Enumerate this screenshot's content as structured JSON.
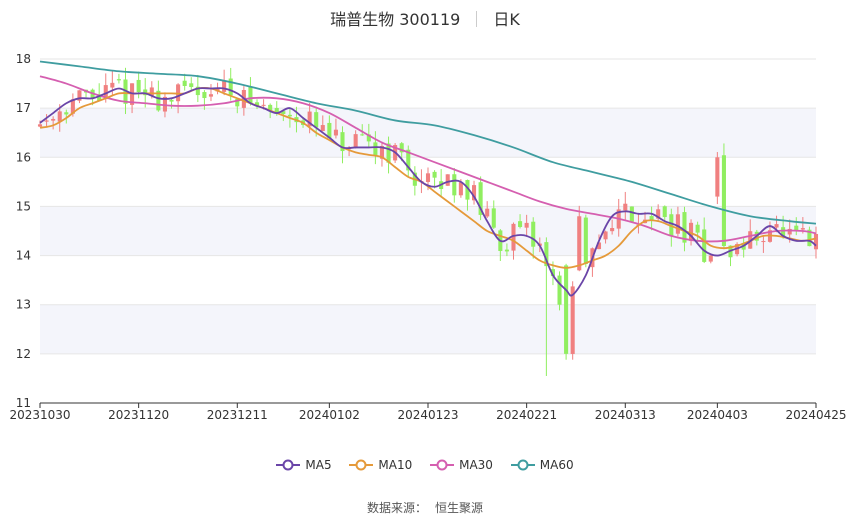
{
  "title": "瑞普生物 300119",
  "period": "日K",
  "source": {
    "label": "数据来源：",
    "name": "恒生聚源"
  },
  "colors": {
    "up": "#f08080",
    "down": "#90ee60",
    "ma5": "#6a45a8",
    "ma10": "#e59a3a",
    "ma30": "#d55fb0",
    "ma60": "#3f9da0",
    "band": "#f4f5fb",
    "grid": "#e6e6e6"
  },
  "chart_data": {
    "type": "candlestick",
    "title": "瑞普生物 300119",
    "ylim": [
      11,
      18
    ],
    "yticks": [
      11,
      12,
      13,
      14,
      15,
      16,
      17,
      18
    ],
    "xticks": [
      "20231030",
      "20231120",
      "20231211",
      "20240102",
      "20240123",
      "20240221",
      "20240313",
      "20240403",
      "20240425"
    ],
    "n_bars": 119,
    "legend_position": "bottom-center",
    "grid": true,
    "series": [
      {
        "name": "MA5",
        "color": "#6a45a8",
        "points": [
          [
            0,
            16.7
          ],
          [
            2,
            16.9
          ],
          [
            4,
            17.1
          ],
          [
            6,
            17.2
          ],
          [
            8,
            17.2
          ],
          [
            10,
            17.3
          ],
          [
            12,
            17.4
          ],
          [
            14,
            17.3
          ],
          [
            16,
            17.3
          ],
          [
            18,
            17.2
          ],
          [
            20,
            17.2
          ],
          [
            22,
            17.3
          ],
          [
            24,
            17.4
          ],
          [
            26,
            17.4
          ],
          [
            28,
            17.4
          ],
          [
            30,
            17.3
          ],
          [
            32,
            17.1
          ],
          [
            34,
            17.0
          ],
          [
            36,
            16.9
          ],
          [
            38,
            17.0
          ],
          [
            40,
            16.8
          ],
          [
            42,
            16.6
          ],
          [
            44,
            16.4
          ],
          [
            46,
            16.2
          ],
          [
            48,
            16.2
          ],
          [
            50,
            16.2
          ],
          [
            52,
            16.2
          ],
          [
            54,
            16.1
          ],
          [
            56,
            15.8
          ],
          [
            58,
            15.5
          ],
          [
            60,
            15.4
          ],
          [
            62,
            15.5
          ],
          [
            64,
            15.5
          ],
          [
            66,
            15.2
          ],
          [
            68,
            14.7
          ],
          [
            70,
            14.3
          ],
          [
            72,
            14.4
          ],
          [
            74,
            14.4
          ],
          [
            76,
            14.2
          ],
          [
            78,
            13.6
          ],
          [
            80,
            13.3
          ],
          [
            81,
            13.2
          ],
          [
            83,
            13.6
          ],
          [
            85,
            14.3
          ],
          [
            87,
            14.8
          ],
          [
            89,
            14.9
          ],
          [
            91,
            14.85
          ],
          [
            93,
            14.85
          ],
          [
            95,
            14.7
          ],
          [
            97,
            14.6
          ],
          [
            99,
            14.4
          ],
          [
            101,
            14.1
          ],
          [
            103,
            14.0
          ],
          [
            105,
            14.1
          ],
          [
            107,
            14.2
          ],
          [
            109,
            14.4
          ],
          [
            111,
            14.6
          ],
          [
            113,
            14.4
          ],
          [
            115,
            14.3
          ],
          [
            117,
            14.3
          ],
          [
            118,
            14.2
          ]
        ]
      },
      {
        "name": "MA10",
        "color": "#e59a3a",
        "points": [
          [
            0,
            16.6
          ],
          [
            2,
            16.65
          ],
          [
            4,
            16.8
          ],
          [
            6,
            17.0
          ],
          [
            8,
            17.1
          ],
          [
            10,
            17.2
          ],
          [
            12,
            17.3
          ],
          [
            14,
            17.3
          ],
          [
            16,
            17.3
          ],
          [
            18,
            17.3
          ],
          [
            20,
            17.3
          ],
          [
            22,
            17.3
          ],
          [
            24,
            17.4
          ],
          [
            26,
            17.4
          ],
          [
            28,
            17.3
          ],
          [
            30,
            17.2
          ],
          [
            32,
            17.1
          ],
          [
            34,
            17.0
          ],
          [
            36,
            16.9
          ],
          [
            38,
            16.8
          ],
          [
            40,
            16.7
          ],
          [
            42,
            16.5
          ],
          [
            44,
            16.35
          ],
          [
            46,
            16.2
          ],
          [
            48,
            16.1
          ],
          [
            50,
            16.05
          ],
          [
            52,
            16.0
          ],
          [
            54,
            15.8
          ],
          [
            56,
            15.6
          ],
          [
            58,
            15.5
          ],
          [
            60,
            15.3
          ],
          [
            62,
            15.1
          ],
          [
            64,
            14.9
          ],
          [
            66,
            14.7
          ],
          [
            68,
            14.5
          ],
          [
            70,
            14.4
          ],
          [
            72,
            14.3
          ],
          [
            74,
            14.1
          ],
          [
            76,
            13.9
          ],
          [
            78,
            13.8
          ],
          [
            80,
            13.75
          ],
          [
            82,
            13.8
          ],
          [
            84,
            13.9
          ],
          [
            86,
            14.0
          ],
          [
            88,
            14.2
          ],
          [
            90,
            14.5
          ],
          [
            92,
            14.7
          ],
          [
            94,
            14.7
          ],
          [
            96,
            14.6
          ],
          [
            98,
            14.5
          ],
          [
            100,
            14.4
          ],
          [
            102,
            14.2
          ],
          [
            104,
            14.15
          ],
          [
            106,
            14.2
          ],
          [
            108,
            14.3
          ],
          [
            110,
            14.4
          ],
          [
            112,
            14.4
          ],
          [
            114,
            14.35
          ],
          [
            116,
            14.3
          ],
          [
            118,
            14.35
          ]
        ]
      },
      {
        "name": "MA30",
        "color": "#d55fb0",
        "points": [
          [
            0,
            17.65
          ],
          [
            4,
            17.5
          ],
          [
            8,
            17.3
          ],
          [
            12,
            17.15
          ],
          [
            16,
            17.1
          ],
          [
            20,
            17.05
          ],
          [
            24,
            17.05
          ],
          [
            28,
            17.1
          ],
          [
            32,
            17.2
          ],
          [
            36,
            17.2
          ],
          [
            40,
            17.1
          ],
          [
            44,
            16.9
          ],
          [
            48,
            16.6
          ],
          [
            52,
            16.3
          ],
          [
            56,
            16.1
          ],
          [
            60,
            15.9
          ],
          [
            64,
            15.7
          ],
          [
            68,
            15.5
          ],
          [
            72,
            15.3
          ],
          [
            76,
            15.1
          ],
          [
            80,
            14.95
          ],
          [
            84,
            14.85
          ],
          [
            88,
            14.75
          ],
          [
            92,
            14.6
          ],
          [
            96,
            14.4
          ],
          [
            100,
            14.3
          ],
          [
            104,
            14.3
          ],
          [
            108,
            14.4
          ],
          [
            112,
            14.5
          ],
          [
            116,
            14.5
          ],
          [
            118,
            14.45
          ]
        ]
      },
      {
        "name": "MA60",
        "color": "#3f9da0",
        "points": [
          [
            0,
            17.95
          ],
          [
            6,
            17.85
          ],
          [
            12,
            17.75
          ],
          [
            18,
            17.7
          ],
          [
            24,
            17.65
          ],
          [
            30,
            17.5
          ],
          [
            36,
            17.3
          ],
          [
            42,
            17.1
          ],
          [
            48,
            16.95
          ],
          [
            54,
            16.75
          ],
          [
            60,
            16.65
          ],
          [
            66,
            16.45
          ],
          [
            72,
            16.2
          ],
          [
            78,
            15.9
          ],
          [
            84,
            15.7
          ],
          [
            90,
            15.5
          ],
          [
            96,
            15.25
          ],
          [
            102,
            15.0
          ],
          [
            108,
            14.8
          ],
          [
            114,
            14.7
          ],
          [
            118,
            14.65
          ]
        ]
      }
    ]
  },
  "legend": [
    {
      "name": "MA5",
      "color": "#6a45a8"
    },
    {
      "name": "MA10",
      "color": "#e59a3a"
    },
    {
      "name": "MA30",
      "color": "#d55fb0"
    },
    {
      "name": "MA60",
      "color": "#3f9da0"
    }
  ]
}
